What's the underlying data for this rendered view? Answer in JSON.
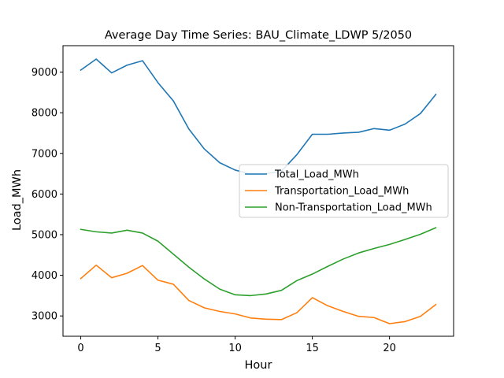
{
  "chart_data": {
    "type": "line",
    "title": "Average Day Time Series: BAU_Climate_LDWP 5/2050",
    "xlabel": "Hour",
    "ylabel": "Load_MWh",
    "xlim": [
      -1.15,
      24.15
    ],
    "ylim": [
      2500,
      9650
    ],
    "xticks": [
      0,
      5,
      10,
      15,
      20
    ],
    "yticks": [
      3000,
      4000,
      5000,
      6000,
      7000,
      8000,
      9000
    ],
    "grid": false,
    "legend_position": "center-right",
    "x": [
      0,
      1,
      2,
      3,
      4,
      5,
      6,
      7,
      8,
      9,
      10,
      11,
      12,
      13,
      14,
      15,
      16,
      17,
      18,
      19,
      20,
      21,
      22,
      23
    ],
    "series": [
      {
        "name": "Total_Load_MWh",
        "color": "#1f77b4",
        "values": [
          9050,
          9320,
          8980,
          9170,
          9280,
          8740,
          8290,
          7600,
          7110,
          6770,
          6590,
          6490,
          6500,
          6560,
          6970,
          7470,
          7470,
          7500,
          7520,
          7610,
          7570,
          7720,
          7980,
          8450
        ]
      },
      {
        "name": "Transportation_Load_MWh",
        "color": "#ff7f0e",
        "values": [
          3920,
          4250,
          3940,
          4050,
          4240,
          3880,
          3780,
          3380,
          3200,
          3110,
          3050,
          2950,
          2920,
          2910,
          3080,
          3450,
          3250,
          3110,
          2990,
          2960,
          2810,
          2860,
          2990,
          3280
        ]
      },
      {
        "name": "Non-Transportation_Load_MWh",
        "color": "#2ca02c",
        "values": [
          5130,
          5070,
          5040,
          5110,
          5040,
          4840,
          4520,
          4200,
          3910,
          3660,
          3520,
          3500,
          3540,
          3630,
          3870,
          4030,
          4220,
          4400,
          4550,
          4660,
          4760,
          4880,
          5010,
          5170
        ]
      }
    ]
  }
}
